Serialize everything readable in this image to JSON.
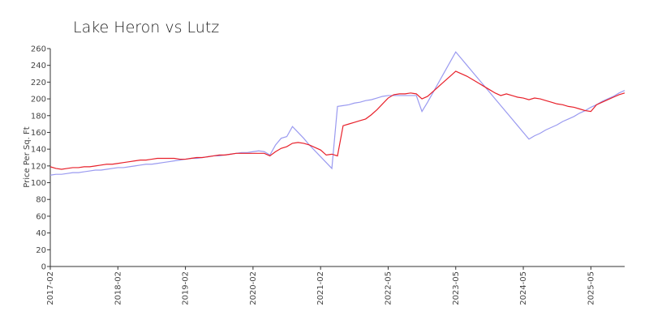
{
  "chart_data": {
    "type": "line",
    "title": "Lake Heron vs Lutz",
    "ylabel": "Price Per Sq. Ft",
    "categories": [
      "2017-02",
      null,
      null,
      null,
      null,
      null,
      null,
      null,
      null,
      null,
      null,
      null,
      "2018-02",
      null,
      null,
      null,
      null,
      null,
      null,
      null,
      null,
      null,
      null,
      null,
      "2019-02",
      null,
      null,
      null,
      null,
      null,
      null,
      null,
      null,
      null,
      null,
      null,
      "2020-02",
      null,
      null,
      null,
      null,
      null,
      null,
      null,
      null,
      null,
      null,
      null,
      "2021-02",
      null,
      null,
      null,
      null,
      null,
      null,
      null,
      null,
      null,
      null,
      null,
      "2022-05",
      null,
      null,
      null,
      null,
      null,
      null,
      null,
      null,
      null,
      null,
      null,
      "2023-05",
      null,
      null,
      null,
      null,
      null,
      null,
      null,
      null,
      null,
      null,
      null,
      "2024-05",
      null,
      null,
      null,
      null,
      null,
      null,
      null,
      null,
      null,
      null,
      null,
      "2025-05",
      null,
      null,
      null,
      null,
      null,
      null
    ],
    "series": [
      {
        "color": "#9a9af0",
        "values": [
          109,
          110,
          110,
          111,
          112,
          112,
          113,
          114,
          115,
          115,
          116,
          117,
          118,
          118,
          119,
          120,
          121,
          122,
          122,
          123,
          124,
          125,
          126,
          127,
          128,
          129,
          129,
          130,
          131,
          132,
          132,
          133,
          134,
          135,
          136,
          136,
          137,
          138,
          137,
          133,
          145,
          153,
          155,
          167,
          160,
          153,
          145,
          138,
          131,
          124,
          117,
          191,
          192,
          193,
          195,
          196,
          198,
          199,
          201,
          203,
          204,
          204,
          204,
          204,
          204,
          204,
          185,
          196,
          208,
          220,
          232,
          244,
          256,
          248,
          240,
          232,
          224,
          216,
          208,
          200,
          192,
          184,
          176,
          168,
          160,
          152,
          156,
          159,
          163,
          166,
          169,
          173,
          176,
          179,
          183,
          186,
          190,
          193,
          197,
          200,
          203,
          207,
          210
        ]
      },
      {
        "color": "#e8202a",
        "values": [
          119,
          117,
          116,
          117,
          118,
          118,
          119,
          119,
          120,
          121,
          122,
          122,
          123,
          124,
          125,
          126,
          127,
          127,
          128,
          129,
          129,
          129,
          129,
          128,
          128,
          129,
          130,
          130,
          131,
          132,
          133,
          133,
          134,
          135,
          135,
          135,
          135,
          135,
          135,
          132,
          137,
          141,
          143,
          147,
          148,
          147,
          145,
          142,
          139,
          133,
          134,
          132,
          168,
          170,
          172,
          174,
          176,
          181,
          187,
          194,
          201,
          205,
          206,
          206,
          207,
          206,
          200,
          203,
          209,
          215,
          221,
          227,
          233,
          230,
          227,
          223,
          219,
          215,
          211,
          207,
          204,
          206,
          204,
          202,
          201,
          199,
          201,
          200,
          198,
          196,
          194,
          193,
          191,
          190,
          188,
          186,
          185,
          193,
          196,
          199,
          202,
          205,
          207
        ]
      }
    ],
    "ylim": [
      0,
      260
    ],
    "yticks": [
      0,
      20,
      40,
      60,
      80,
      100,
      120,
      140,
      160,
      180,
      200,
      220,
      240,
      260
    ]
  }
}
